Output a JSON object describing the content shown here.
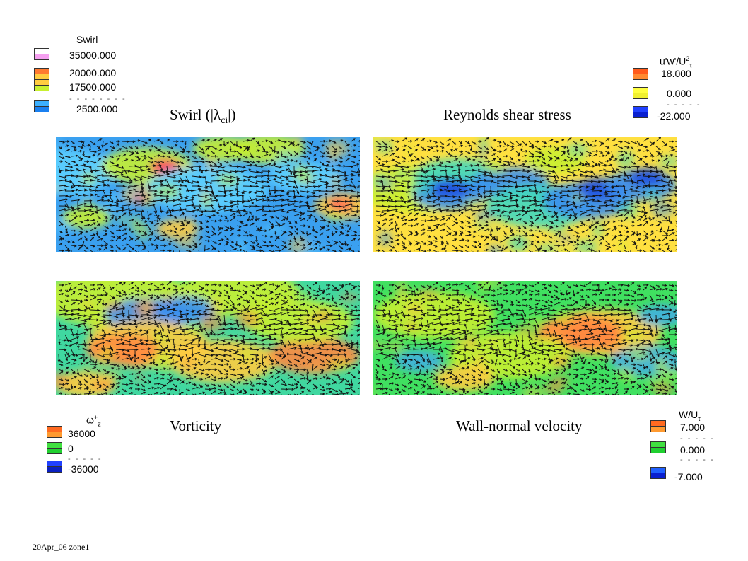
{
  "panels": {
    "swirl": {
      "title_pre": "Swirl (|",
      "title_sym": "λ",
      "title_sub": "ci",
      "title_post": "|)"
    },
    "reynolds": {
      "title": "Reynolds shear stress"
    },
    "vorticity": {
      "title": "Vorticity"
    },
    "wallnormal": {
      "title": "Wall-normal velocity"
    }
  },
  "legends": {
    "swirl": {
      "title": "Swirl",
      "entries": [
        {
          "value": "35000.000",
          "colors": [
            "#ffffff",
            "#f5a0f0"
          ]
        },
        {
          "value": "20000.000",
          "colors": [
            "#ff7a30",
            "#ffcc40"
          ]
        },
        {
          "value": "17500.000",
          "colors": [
            "#ffcc40",
            "#c8f030"
          ]
        },
        {
          "value": "2500.000",
          "colors": [
            "#3cb0ff",
            "#1a80f0"
          ]
        }
      ],
      "dashes": "- - - - - - - -"
    },
    "reynolds": {
      "title": "u'w'/U",
      "title_sup": "2",
      "title_sub": "τ",
      "entries": [
        {
          "value": "18.000",
          "colors": [
            "#ff5a1a",
            "#ff8a30"
          ]
        },
        {
          "value": "0.000",
          "colors": [
            "#ffff40",
            "#f0f030"
          ]
        },
        {
          "value": "-22.000",
          "colors": [
            "#2040ff",
            "#0a20d0"
          ]
        }
      ],
      "dashes": "- - - - -"
    },
    "vorticity": {
      "title": "ω",
      "title_sup": "+",
      "title_sub": "z",
      "entries": [
        {
          "value": "36000",
          "colors": [
            "#ff6a20",
            "#ff9a30"
          ]
        },
        {
          "value": "0",
          "colors": [
            "#40e040",
            "#20d030"
          ]
        },
        {
          "value": "-36000",
          "colors": [
            "#2040ff",
            "#0a20c0"
          ]
        }
      ],
      "dashes": "- - - - -"
    },
    "wallnormal": {
      "title": "W/U",
      "title_sub": "τ",
      "entries": [
        {
          "value": "7.000",
          "colors": [
            "#ff6a20",
            "#ff9a30"
          ]
        },
        {
          "value": "0.000",
          "colors": [
            "#40e040",
            "#20d030"
          ]
        },
        {
          "value": "-7.000",
          "colors": [
            "#2060ff",
            "#0a20d0"
          ]
        }
      ],
      "dashes": "- - - - -"
    }
  },
  "field_palettes": {
    "swirl": {
      "base": "#3aa0f0",
      "blobs": [
        "#5cd0ff",
        "#c8f030",
        "#ffcc40",
        "#ff3060"
      ]
    },
    "reynolds": {
      "base": "#ffe040",
      "blobs": [
        "#c8f030",
        "#40d8c0",
        "#3a90f0",
        "#2050e0"
      ]
    },
    "vorticity": {
      "base": "#40d8a0",
      "blobs": [
        "#c8f030",
        "#ffcc40",
        "#ff8a40",
        "#3a90f0"
      ]
    },
    "wallnormal": {
      "base": "#40e060",
      "blobs": [
        "#c8f030",
        "#ffcc40",
        "#ff8a40",
        "#40b0e0"
      ]
    }
  },
  "footer": "20Apr_06 zone1"
}
